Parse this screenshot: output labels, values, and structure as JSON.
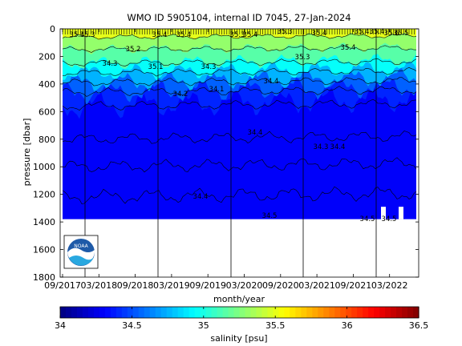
{
  "chart_data": {
    "type": "heatmap",
    "title": "WMO ID 5905104, internal ID 7045, 27-Jan-2024",
    "xlabel": "month/year",
    "ylabel": "pressure [dbar]",
    "x_tick_labels": [
      "09/2017",
      "03/2018",
      "09/2018",
      "03/2019",
      "09/2019",
      "03/2020",
      "09/2020",
      "03/2021",
      "09/2021",
      "03/2022"
    ],
    "y_ticks": [
      0,
      200,
      400,
      600,
      800,
      1000,
      1200,
      1400,
      1600,
      1800
    ],
    "ylim": [
      1800,
      0
    ],
    "colorbar": {
      "label": "salinity [psu]",
      "min": 34,
      "max": 36.5,
      "ticks": [
        "34",
        "34.5",
        "35",
        "35.5",
        "36",
        "36.5"
      ],
      "colormap": "jet"
    },
    "layers": [
      {
        "pressure_top": 0,
        "pressure_bottom": 60,
        "salinity": 35.5
      },
      {
        "pressure_top": 60,
        "pressure_bottom": 150,
        "salinity": 35.3
      },
      {
        "pressure_top": 150,
        "pressure_bottom": 250,
        "salinity": 35.15
      },
      {
        "pressure_top": 250,
        "pressure_bottom": 320,
        "salinity": 34.95
      },
      {
        "pressure_top": 320,
        "pressure_bottom": 390,
        "salinity": 34.75
      },
      {
        "pressure_top": 390,
        "pressure_bottom": 460,
        "salinity": 34.55
      },
      {
        "pressure_top": 460,
        "pressure_bottom": 560,
        "salinity": 34.4
      },
      {
        "pressure_top": 560,
        "pressure_bottom": 1380,
        "salinity": 34.3
      }
    ],
    "max_profile_depth": 1380,
    "contour_labels": [
      "35.4",
      "35.3",
      "35.4",
      "35.4",
      "35.3",
      "35.4",
      "35.6",
      "35.3",
      "35.4",
      "35.4",
      "35.4",
      "35.5",
      "35.3",
      "35.4",
      "35.2",
      "35.1",
      "34.3",
      "34.3",
      "34.4",
      "34.1",
      "34.4",
      "34.4",
      "34.2",
      "34.3",
      "34.4",
      "34.5",
      "34.5",
      "34.5"
    ],
    "logo_text": "NOAA"
  }
}
